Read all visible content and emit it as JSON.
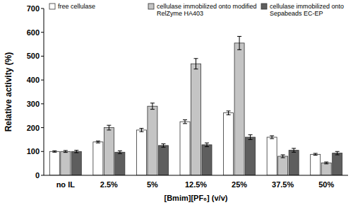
{
  "chart_data": {
    "type": "bar",
    "x_label": "[Bmim][PF₆] (v/v)",
    "y_label": "Relative activity (%)",
    "categories": [
      "no IL",
      "2.5%",
      "5%",
      "12.5%",
      "25%",
      "37.5%",
      "50%"
    ],
    "series": [
      {
        "name": "free cellulase",
        "color": "#ffffff",
        "values": [
          100,
          140,
          190,
          225,
          262,
          160,
          88
        ],
        "errors": [
          3,
          4,
          7,
          8,
          8,
          6,
          4
        ]
      },
      {
        "name": "cellulase immobilized onto modified RelZyme HA403",
        "color": "#c4c4c4",
        "values": [
          100,
          200,
          290,
          468,
          555,
          80,
          52
        ],
        "errors": [
          4,
          10,
          13,
          22,
          28,
          6,
          4
        ]
      },
      {
        "name": "cellulase immobilized onto Sepabeads EC-EP",
        "color": "#5e5e5e",
        "values": [
          100,
          97,
          125,
          128,
          160,
          105,
          93
        ],
        "errors": [
          5,
          6,
          7,
          8,
          10,
          8,
          7
        ]
      }
    ],
    "ylim": [
      0,
      700
    ],
    "yticks": [
      0,
      100,
      200,
      300,
      400,
      500,
      600,
      700
    ],
    "grid": false,
    "legend": "top"
  }
}
